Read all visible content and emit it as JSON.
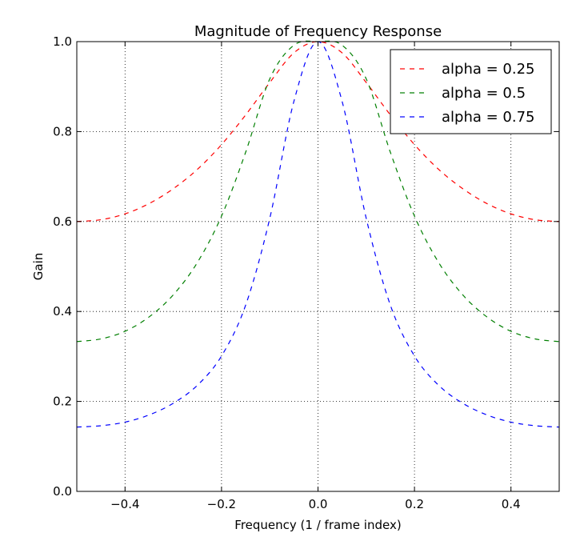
{
  "chart_data": {
    "type": "line",
    "title": "Magnitude of Frequency Response",
    "xlabel": "Frequency (1 / frame index)",
    "ylabel": "Gain",
    "xlim": [
      -0.5,
      0.5
    ],
    "ylim": [
      0.0,
      1.0
    ],
    "x_ticks": [
      -0.4,
      -0.2,
      0.0,
      0.2,
      0.4
    ],
    "x_tick_labels": [
      "−0.4",
      "−0.2",
      "0.0",
      "0.2",
      "0.4"
    ],
    "y_ticks": [
      0.0,
      0.2,
      0.4,
      0.6,
      0.8,
      1.0
    ],
    "y_tick_labels": [
      "0.0",
      "0.2",
      "0.4",
      "0.6",
      "0.8",
      "1.0"
    ],
    "grid": true,
    "legend_position": "top-right",
    "x": [
      -0.5,
      -0.45,
      -0.4,
      -0.35,
      -0.3,
      -0.25,
      -0.2,
      -0.15,
      -0.1,
      -0.05,
      0.0,
      0.05,
      0.1,
      0.15,
      0.2,
      0.25,
      0.3,
      0.35,
      0.4,
      0.45,
      0.5
    ],
    "series": [
      {
        "name": "alpha = 0.25",
        "color": "#ff0000",
        "values": [
          0.6,
          0.604,
          0.617,
          0.64,
          0.673,
          0.716,
          0.771,
          0.837,
          0.909,
          0.975,
          1.0,
          0.975,
          0.909,
          0.837,
          0.771,
          0.716,
          0.673,
          0.64,
          0.617,
          0.604,
          0.6
        ]
      },
      {
        "name": "alpha = 0.5",
        "color": "#007f00",
        "values": [
          0.333,
          0.339,
          0.356,
          0.388,
          0.437,
          0.509,
          0.612,
          0.754,
          0.917,
          0.992,
          1.0,
          0.992,
          0.917,
          0.754,
          0.612,
          0.509,
          0.437,
          0.388,
          0.356,
          0.339,
          0.333
        ]
      },
      {
        "name": "alpha = 0.75",
        "color": "#0000ff",
        "values": [
          0.143,
          0.146,
          0.154,
          0.17,
          0.196,
          0.236,
          0.301,
          0.414,
          0.607,
          0.867,
          1.0,
          0.867,
          0.607,
          0.414,
          0.301,
          0.236,
          0.196,
          0.17,
          0.154,
          0.146,
          0.143
        ]
      }
    ]
  }
}
